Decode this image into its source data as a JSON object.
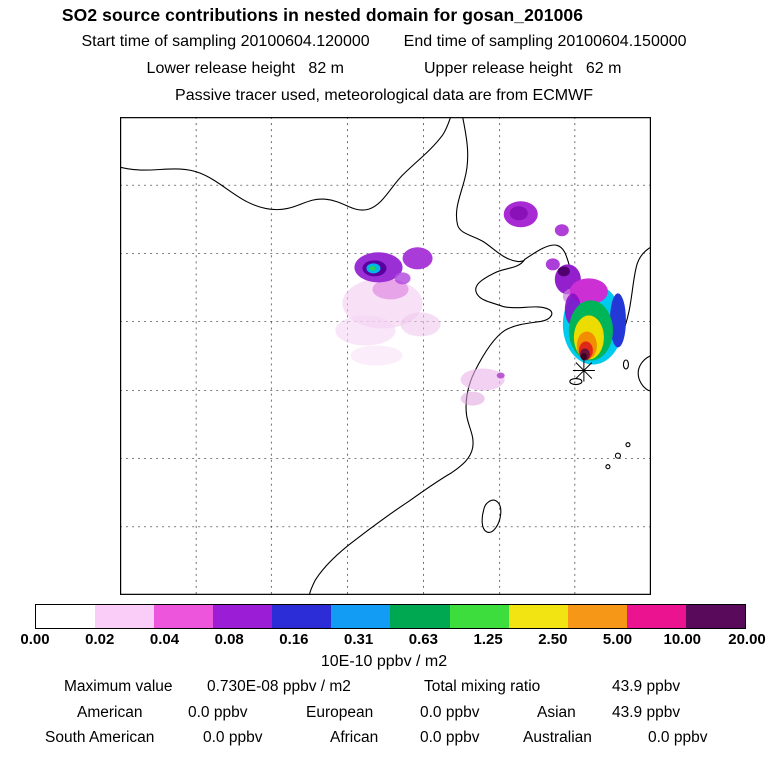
{
  "header": {
    "title": "SO2 source contributions in nested domain for gosan_201006",
    "start_time": "Start time of sampling 20100604.120000",
    "end_time": "End time of sampling 20100604.150000",
    "lower_release": "Lower release height   82 m",
    "upper_release": "Upper release height   62 m",
    "tracer_note": "Passive tracer used, meteorological data are from ECMWF"
  },
  "colorbar": {
    "labels": [
      "0.00",
      "0.02",
      "0.04",
      "0.08",
      "0.16",
      "0.31",
      "0.63",
      "1.25",
      "2.50",
      "5.00",
      "10.00",
      "20.00"
    ],
    "colors": [
      "#ffffff",
      "#f9cdf7",
      "#ee55dd",
      "#9b1ed6",
      "#2d2dd8",
      "#129cf4",
      "#00a852",
      "#3ddd3d",
      "#f2e413",
      "#f79718",
      "#ec1390",
      "#5a0a5a"
    ],
    "unit": "10E-10 ppbv / m2"
  },
  "stats": {
    "maximum_label": "Maximum value",
    "maximum_value": "0.730E-08 ppbv / m2",
    "total_label": "Total mixing ratio",
    "total_value": "43.9 ppbv",
    "contributions": [
      {
        "region": "American",
        "value": "0.0 ppbv"
      },
      {
        "region": "European",
        "value": "0.0 ppbv"
      },
      {
        "region": "Asian",
        "value": "43.9 ppbv"
      },
      {
        "region": "South American",
        "value": "0.0 ppbv"
      },
      {
        "region": "African",
        "value": "0.0 ppbv"
      },
      {
        "region": "Australian",
        "value": "0.0 ppbv"
      }
    ]
  },
  "chart_data": {
    "type": "heatmap",
    "title": "SO2 source contributions in nested domain for gosan_201006",
    "subtitle_lines": [
      "Start time of sampling 20100604.120000    End time of sampling 20100604.150000",
      "Lower release height 82 m    Upper release height 62 m",
      "Passive tracer used, meteorological data are from ECMWF"
    ],
    "map_region": "East Asia (eastern China, Korean peninsula, Japan, Taiwan)",
    "colorbar_levels": [
      0.0,
      0.02,
      0.04,
      0.08,
      0.16,
      0.31,
      0.63,
      1.25,
      2.5,
      5.0,
      10.0,
      20.0
    ],
    "colorbar_unit": "10E-10 ppbv / m2",
    "maximum_value": "0.730E-08 ppbv / m2",
    "total_mixing_ratio_ppbv": 43.9,
    "contributions_ppbv": {
      "American": 0.0,
      "European": 0.0,
      "Asian": 43.9,
      "South American": 0.0,
      "African": 0.0,
      "Australian": 0.0
    },
    "sampling": {
      "start": "20100604.120000",
      "end": "20100604.150000"
    },
    "release_heights_m": {
      "lower": 82,
      "upper": 62
    },
    "meteorology": "ECMWF",
    "features": [
      "Strong multi-level hotspot (cyan/green/yellow/red/dark core up to ~20 units) over southwest Korean peninsula near receptor",
      "Asterisk receptor marker (Gosan) just south of hotspot core",
      "Moderate purple patches over northeastern China and west of Korea",
      "Faint pink patches over east-central China coast",
      "Dashed lat/lon grid over plain coastline map"
    ]
  }
}
